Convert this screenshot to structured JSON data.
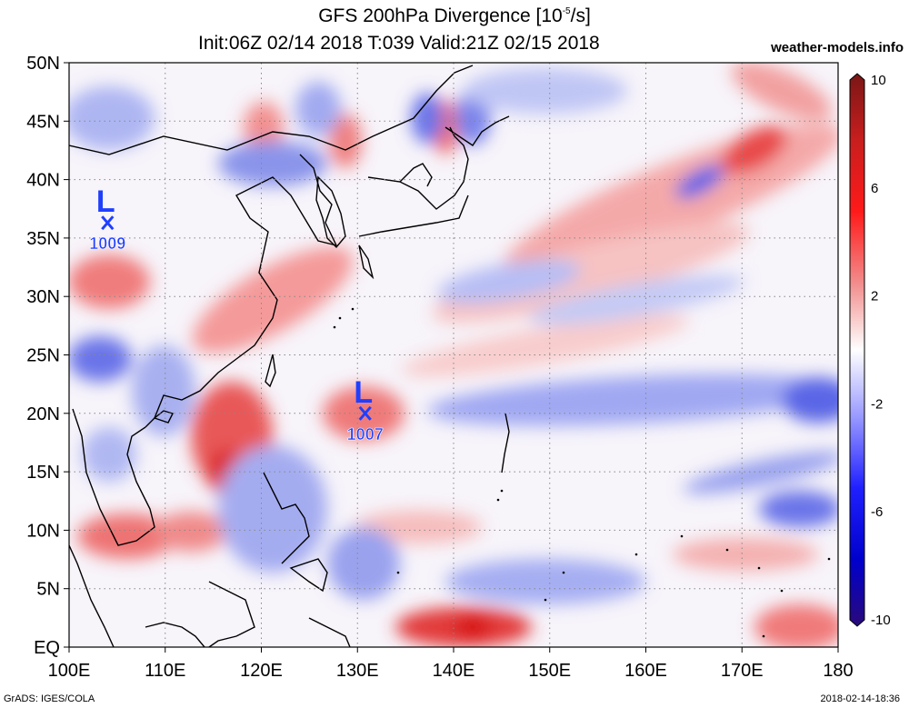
{
  "title": {
    "main": "GFS 200hPa Divergence [10",
    "exponent": "-5",
    "unit_tail": "/s]",
    "subtitle": "Init:06Z 02/14 2018 T:039 Valid:21Z 02/15 2018",
    "site": "weather-models.info"
  },
  "footer": {
    "left": "GrADS: IGES/COLA",
    "right": "2018-02-14-18:36"
  },
  "map": {
    "lat_labels": [
      "EQ",
      "5N",
      "10N",
      "15N",
      "20N",
      "25N",
      "30N",
      "35N",
      "40N",
      "45N",
      "50N"
    ],
    "lon_labels": [
      "100E",
      "110E",
      "120E",
      "130E",
      "140E",
      "150E",
      "160E",
      "170E",
      "180"
    ],
    "lat_range": [
      0,
      50
    ],
    "lon_range": [
      100,
      180
    ],
    "grid": "dotted"
  },
  "lows": [
    {
      "label": "L",
      "pressure": "1009",
      "lon": 104,
      "lat": 36.3
    },
    {
      "label": "L",
      "pressure": "1007",
      "lon": 130.8,
      "lat": 20
    }
  ],
  "colorbar": {
    "ticks": [
      "10",
      "6",
      "2",
      "-2",
      "-6",
      "-10"
    ],
    "colors": [
      "#7a1616",
      "#c81e1e",
      "#ff1a1a",
      "#f28d8d",
      "#ffffff",
      "#9a9aff",
      "#2020ff",
      "#0000cc",
      "#2a0a7a"
    ]
  },
  "colors": {
    "low_marker": "#1f3fff",
    "positive": "#f07272",
    "negative": "#7a86ee"
  }
}
